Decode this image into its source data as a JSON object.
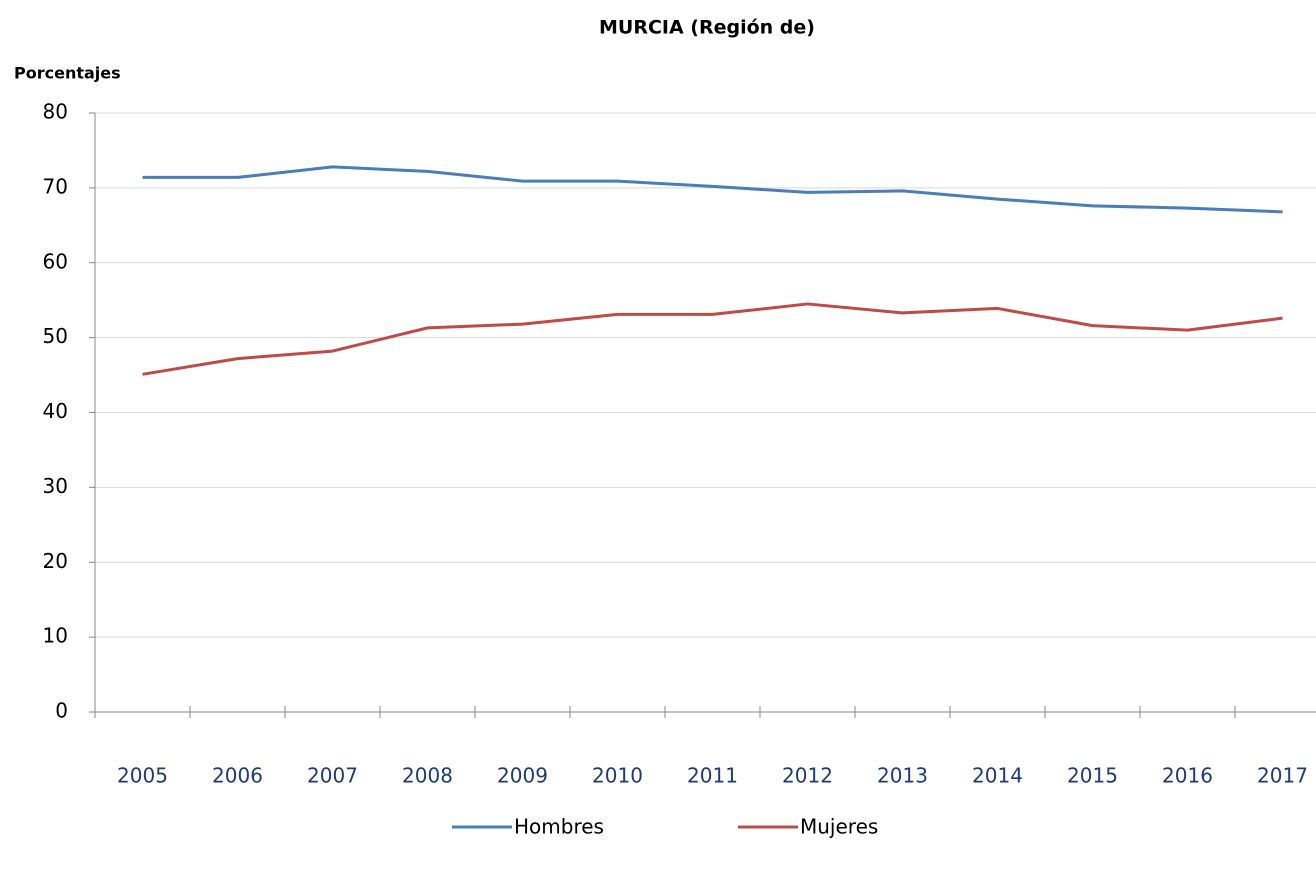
{
  "chart_data": {
    "type": "line",
    "title": "MURCIA (Región de)",
    "y_label": "Porcentajes",
    "categories": [
      "2005",
      "2006",
      "2007",
      "2008",
      "2009",
      "2010",
      "2011",
      "2012",
      "2013",
      "2014",
      "2015",
      "2016",
      "2017"
    ],
    "series": [
      {
        "name": "Hombres",
        "color": "#4a7ebb",
        "values": [
          71.4,
          71.4,
          72.8,
          72.2,
          70.9,
          70.9,
          70.2,
          69.4,
          69.6,
          68.5,
          67.6,
          67.3,
          66.8
        ]
      },
      {
        "name": "Mujeres",
        "color": "#be4b48",
        "values": [
          45.1,
          47.2,
          48.2,
          51.3,
          51.8,
          53.1,
          53.1,
          54.5,
          53.3,
          53.9,
          51.6,
          51.0,
          52.6
        ]
      }
    ],
    "ylim": [
      0,
      80
    ],
    "yticks": [
      0,
      10,
      20,
      30,
      40,
      50,
      60,
      70,
      80
    ],
    "grid": true,
    "legend": "bottom"
  }
}
